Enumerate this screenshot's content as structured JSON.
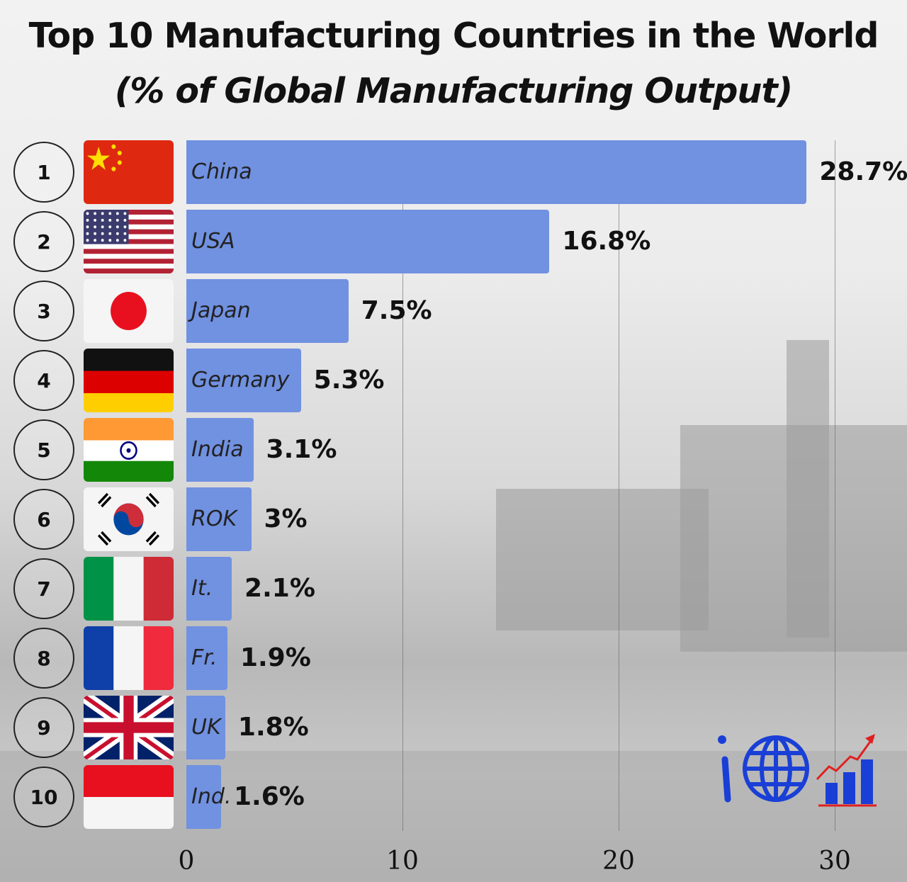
{
  "chart_data": {
    "type": "bar",
    "orientation": "horizontal",
    "title": "Top 10 Manufacturing Countries in the World",
    "subtitle": "(% of Global Manufacturing Output)",
    "xlim": [
      0,
      30.5
    ],
    "xticks": [
      "0",
      "10",
      "20",
      "30"
    ],
    "grid": true,
    "ranks": [
      "1",
      "2",
      "3",
      "4",
      "5",
      "6",
      "7",
      "8",
      "9",
      "10"
    ],
    "categories": [
      "China",
      "USA",
      "Japan",
      "Germany",
      "India",
      "ROK",
      "It.",
      "Fr.",
      "UK",
      "Ind."
    ],
    "flags": [
      "cn",
      "us",
      "jp",
      "de",
      "in",
      "kr",
      "it",
      "fr",
      "uk",
      "id"
    ],
    "values": [
      28.7,
      16.8,
      7.5,
      5.3,
      3.1,
      3,
      2.1,
      1.9,
      1.8,
      1.6
    ],
    "value_labels": [
      "28.7%",
      "16.8%",
      "7.5%",
      "5.3%",
      "3.1%",
      "3%",
      "2.1%",
      "1.9%",
      "1.8%",
      "1.6%"
    ],
    "bar_color": "#7191e1"
  },
  "logo": {
    "icon": "globe-chart-logo",
    "color": "#1a3fd6",
    "arrow_color": "#e02020"
  }
}
